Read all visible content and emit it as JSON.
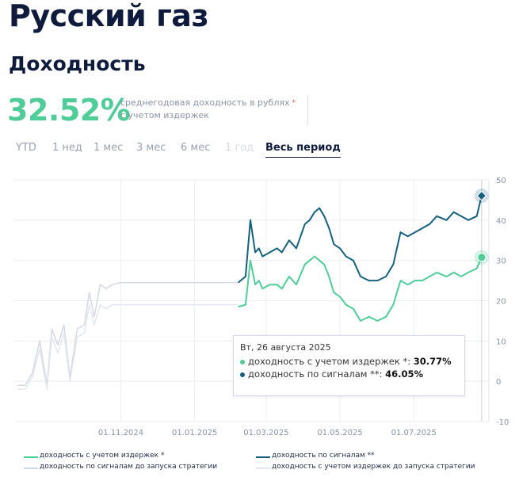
{
  "page": {
    "title": "Русский газ",
    "subtitle": "Доходность"
  },
  "summary": {
    "value": "32.52%",
    "desc_line1": "среднегодовая доходность в рублях",
    "desc_line2": "с учетом издержек",
    "star": "*",
    "value_color": "#4fcc98"
  },
  "tabs": [
    {
      "label": "YTD",
      "state": "normal"
    },
    {
      "label": "1 нед",
      "state": "normal"
    },
    {
      "label": "1 мес",
      "state": "normal"
    },
    {
      "label": "3 мес",
      "state": "normal"
    },
    {
      "label": "6 мес",
      "state": "normal"
    },
    {
      "label": "1 год",
      "state": "disabled"
    },
    {
      "label": "Весь период",
      "state": "active"
    }
  ],
  "tooltip": {
    "date": "Вт, 26 августа 2025",
    "rows": [
      {
        "label": "доходность с учетом издержек *: ",
        "value": "30.77%",
        "color": "#4fcc98"
      },
      {
        "label": "доходность по сигналам **: ",
        "value": "46.05%",
        "color": "#14607e"
      }
    ]
  },
  "legend": {
    "items": [
      {
        "label": "доходность с учетом издержек *",
        "color": "#4fcc98"
      },
      {
        "label": "доходность по сигналам **",
        "color": "#14607e"
      },
      {
        "label": "доходность по сигналам до запуска стратегии",
        "color": "#d4d8e6"
      },
      {
        "label": "доходность с учетом издержек до запуска стратегии",
        "color": "#e4e7ef"
      }
    ]
  },
  "chart_data": {
    "type": "line",
    "y_axis_side": "right",
    "ylim": [
      -10,
      50
    ],
    "y_ticks": [
      "50",
      "40",
      "30",
      "20",
      "10",
      "0",
      "-10"
    ],
    "x_ticks": [
      {
        "label": "01.11.2024",
        "date": "2024-11-01"
      },
      {
        "label": "01.01.2025",
        "date": "2025-01-01"
      },
      {
        "label": "01.03.2025",
        "date": "2025-03-01"
      },
      {
        "label": "01.05.2025",
        "date": "2025-05-01"
      },
      {
        "label": "01.07.2025",
        "date": "2025-07-01"
      }
    ],
    "xlim": [
      "2024-08-05",
      "2025-09-01"
    ],
    "grid": true,
    "series": [
      {
        "name": "доходность по сигналам до запуска стратегии",
        "color": "#d4d8e6",
        "x": [
          "2024-08-08",
          "2024-08-14",
          "2024-08-20",
          "2024-08-26",
          "2024-09-01",
          "2024-09-05",
          "2024-09-10",
          "2024-09-15",
          "2024-09-20",
          "2024-09-26",
          "2024-10-02",
          "2024-10-06",
          "2024-10-10",
          "2024-10-15",
          "2024-10-20",
          "2024-10-25",
          "2024-11-01",
          "2024-12-01",
          "2025-01-01",
          "2025-02-01",
          "2025-02-06"
        ],
        "y": [
          -1,
          -1,
          2,
          10,
          -1,
          13,
          9,
          14,
          1,
          13,
          14,
          22,
          16,
          24,
          23,
          24,
          24.5,
          24.5,
          24.5,
          24.5,
          24.5
        ]
      },
      {
        "name": "доходность с учетом издержек до запуска стратегии",
        "color": "#e4e7ef",
        "x": [
          "2024-08-08",
          "2024-08-14",
          "2024-08-20",
          "2024-08-26",
          "2024-09-01",
          "2024-09-05",
          "2024-09-10",
          "2024-09-15",
          "2024-09-20",
          "2024-09-26",
          "2024-10-02",
          "2024-10-06",
          "2024-10-10",
          "2024-10-15",
          "2024-10-20",
          "2024-10-25",
          "2024-11-01",
          "2024-12-01",
          "2025-01-01",
          "2025-02-01",
          "2025-02-06"
        ],
        "y": [
          -2,
          -2,
          1,
          8,
          -2,
          11,
          7,
          12,
          0,
          11,
          12,
          19,
          14,
          19,
          18,
          19,
          19,
          19,
          19,
          19,
          19
        ]
      },
      {
        "name": "доходность по сигналам **",
        "color": "#14607e",
        "x": [
          "2025-02-06",
          "2025-02-12",
          "2025-02-16",
          "2025-02-20",
          "2025-02-23",
          "2025-02-26",
          "2025-03-04",
          "2025-03-10",
          "2025-03-14",
          "2025-03-20",
          "2025-03-26",
          "2025-04-02",
          "2025-04-06",
          "2025-04-10",
          "2025-04-14",
          "2025-04-18",
          "2025-04-22",
          "2025-04-26",
          "2025-05-01",
          "2025-05-06",
          "2025-05-12",
          "2025-05-18",
          "2025-05-25",
          "2025-06-01",
          "2025-06-08",
          "2025-06-14",
          "2025-06-20",
          "2025-06-26",
          "2025-07-02",
          "2025-07-08",
          "2025-07-14",
          "2025-07-20",
          "2025-07-28",
          "2025-08-03",
          "2025-08-09",
          "2025-08-15",
          "2025-08-22",
          "2025-08-26"
        ],
        "y": [
          24.5,
          26,
          40,
          32,
          33,
          31,
          32,
          33,
          32,
          35,
          33,
          39,
          40,
          42,
          43,
          41,
          38,
          34,
          33,
          31,
          30,
          26,
          25,
          25,
          26,
          29,
          37,
          36,
          37,
          38,
          39,
          41,
          40,
          42,
          41,
          40,
          41,
          46.05
        ]
      },
      {
        "name": "доходность с учетом издержек *",
        "color": "#4fcc98",
        "x": [
          "2025-02-06",
          "2025-02-12",
          "2025-02-16",
          "2025-02-20",
          "2025-02-23",
          "2025-02-26",
          "2025-03-04",
          "2025-03-10",
          "2025-03-14",
          "2025-03-20",
          "2025-03-26",
          "2025-04-02",
          "2025-04-06",
          "2025-04-10",
          "2025-04-14",
          "2025-04-18",
          "2025-04-22",
          "2025-04-26",
          "2025-05-01",
          "2025-05-06",
          "2025-05-12",
          "2025-05-18",
          "2025-05-25",
          "2025-06-01",
          "2025-06-08",
          "2025-06-14",
          "2025-06-20",
          "2025-06-26",
          "2025-07-02",
          "2025-07-08",
          "2025-07-14",
          "2025-07-20",
          "2025-07-28",
          "2025-08-03",
          "2025-08-09",
          "2025-08-15",
          "2025-08-22",
          "2025-08-26"
        ],
        "y": [
          18.5,
          19,
          30,
          24,
          25,
          23,
          24,
          24,
          23,
          26,
          24,
          29,
          30,
          31,
          30,
          29,
          26,
          22,
          21,
          19,
          18,
          15,
          16,
          15,
          16,
          19,
          25,
          24,
          25,
          25,
          26,
          27,
          26,
          27,
          26,
          27,
          28,
          30.77
        ]
      }
    ]
  }
}
